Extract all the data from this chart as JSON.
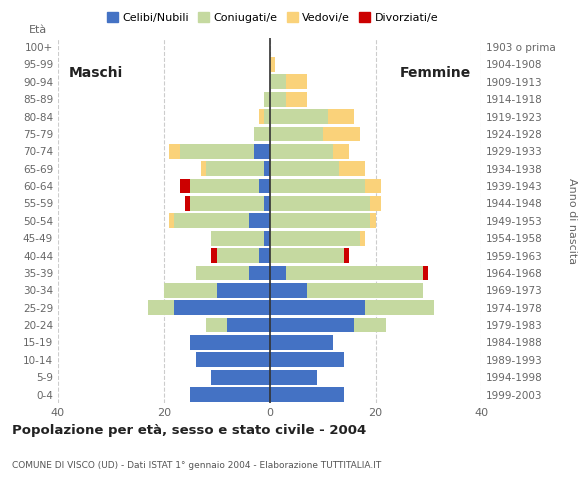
{
  "age_groups": [
    "0-4",
    "5-9",
    "10-14",
    "15-19",
    "20-24",
    "25-29",
    "30-34",
    "35-39",
    "40-44",
    "45-49",
    "50-54",
    "55-59",
    "60-64",
    "65-69",
    "70-74",
    "75-79",
    "80-84",
    "85-89",
    "90-94",
    "95-99",
    "100+"
  ],
  "birth_years": [
    "1999-2003",
    "1994-1998",
    "1989-1993",
    "1984-1988",
    "1979-1983",
    "1974-1978",
    "1969-1973",
    "1964-1968",
    "1959-1963",
    "1954-1958",
    "1949-1953",
    "1944-1948",
    "1939-1943",
    "1934-1938",
    "1929-1933",
    "1924-1928",
    "1919-1923",
    "1914-1918",
    "1909-1913",
    "1904-1908",
    "1903 o prima"
  ],
  "males": {
    "celibe": [
      15,
      11,
      14,
      15,
      8,
      18,
      10,
      4,
      2,
      1,
      4,
      1,
      2,
      1,
      3,
      0,
      0,
      0,
      0,
      0,
      0
    ],
    "coniugato": [
      0,
      0,
      0,
      0,
      4,
      5,
      10,
      10,
      8,
      10,
      14,
      14,
      13,
      11,
      14,
      3,
      1,
      1,
      0,
      0,
      0
    ],
    "vedovo": [
      0,
      0,
      0,
      0,
      0,
      0,
      0,
      0,
      0,
      0,
      1,
      0,
      0,
      1,
      2,
      0,
      1,
      0,
      0,
      0,
      0
    ],
    "divorziato": [
      0,
      0,
      0,
      0,
      0,
      0,
      0,
      0,
      1,
      0,
      0,
      1,
      2,
      0,
      0,
      0,
      0,
      0,
      0,
      0,
      0
    ]
  },
  "females": {
    "nubile": [
      14,
      9,
      14,
      12,
      16,
      18,
      7,
      3,
      0,
      0,
      0,
      0,
      0,
      0,
      0,
      0,
      0,
      0,
      0,
      0,
      0
    ],
    "coniugata": [
      0,
      0,
      0,
      0,
      6,
      13,
      22,
      26,
      14,
      17,
      19,
      19,
      18,
      13,
      12,
      10,
      11,
      3,
      3,
      0,
      0
    ],
    "vedova": [
      0,
      0,
      0,
      0,
      0,
      0,
      0,
      0,
      0,
      1,
      1,
      2,
      3,
      5,
      3,
      7,
      5,
      4,
      4,
      1,
      0
    ],
    "divorziata": [
      0,
      0,
      0,
      0,
      0,
      0,
      0,
      1,
      1,
      0,
      0,
      0,
      0,
      0,
      0,
      0,
      0,
      0,
      0,
      0,
      0
    ]
  },
  "colors": {
    "celibe": "#4472c4",
    "coniugato": "#c5d9a0",
    "vedovo": "#fad27a",
    "divorziato": "#cc0000"
  },
  "xlim": 40,
  "title": "Popolazione per età, sesso e stato civile - 2004",
  "subtitle": "COMUNE DI VISCO (UD) - Dati ISTAT 1° gennaio 2004 - Elaborazione TUTTITALIA.IT",
  "legend_labels": [
    "Celibi/Nubili",
    "Coniugati/e",
    "Vedovi/e",
    "Divorziati/e"
  ],
  "left_label": "Maschi",
  "right_label": "Femmine",
  "eta_label": "À",
  "anno_label": "Anno di nascita",
  "background_color": "#ffffff",
  "grid_color": "#cccccc"
}
